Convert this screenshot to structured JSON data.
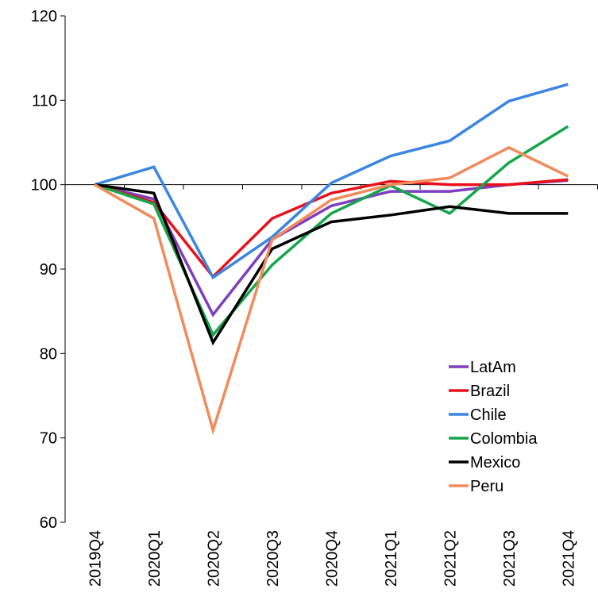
{
  "chart_data": {
    "type": "line",
    "categories": [
      "2019Q4",
      "2020Q1",
      "2020Q2",
      "2020Q3",
      "2020Q4",
      "2021Q1",
      "2021Q2",
      "2021Q3",
      "2021Q4"
    ],
    "series": [
      {
        "name": "LatAm",
        "color": "#7f3fbf",
        "values": [
          100,
          98.3,
          84.6,
          93.5,
          97.5,
          99.2,
          99.2,
          100,
          100.5
        ]
      },
      {
        "name": "Brazil",
        "color": "#e8101a",
        "values": [
          100,
          97.9,
          89.1,
          96,
          99,
          100.4,
          100,
          100,
          100.6
        ]
      },
      {
        "name": "Chile",
        "color": "#3b86e0",
        "values": [
          100,
          102.1,
          89,
          93.8,
          100.2,
          103.4,
          105.2,
          109.9,
          111.9
        ]
      },
      {
        "name": "Colombia",
        "color": "#14a64a",
        "values": [
          100,
          97.7,
          82.2,
          90.5,
          96.6,
          99.9,
          96.6,
          102.6,
          106.9
        ]
      },
      {
        "name": "Mexico",
        "color": "#000000",
        "values": [
          100,
          99,
          81.3,
          92.4,
          95.6,
          96.4,
          97.4,
          96.6,
          96.6
        ]
      },
      {
        "name": "Peru",
        "color": "#f28a5a",
        "values": [
          100,
          96,
          70.9,
          93.5,
          98.2,
          100,
          100.8,
          104.4,
          101
        ]
      }
    ],
    "ylim": [
      60,
      120
    ],
    "yticks": [
      60,
      70,
      80,
      90,
      100,
      110,
      120
    ],
    "axis_cross": 100,
    "legend": "lower-right"
  }
}
